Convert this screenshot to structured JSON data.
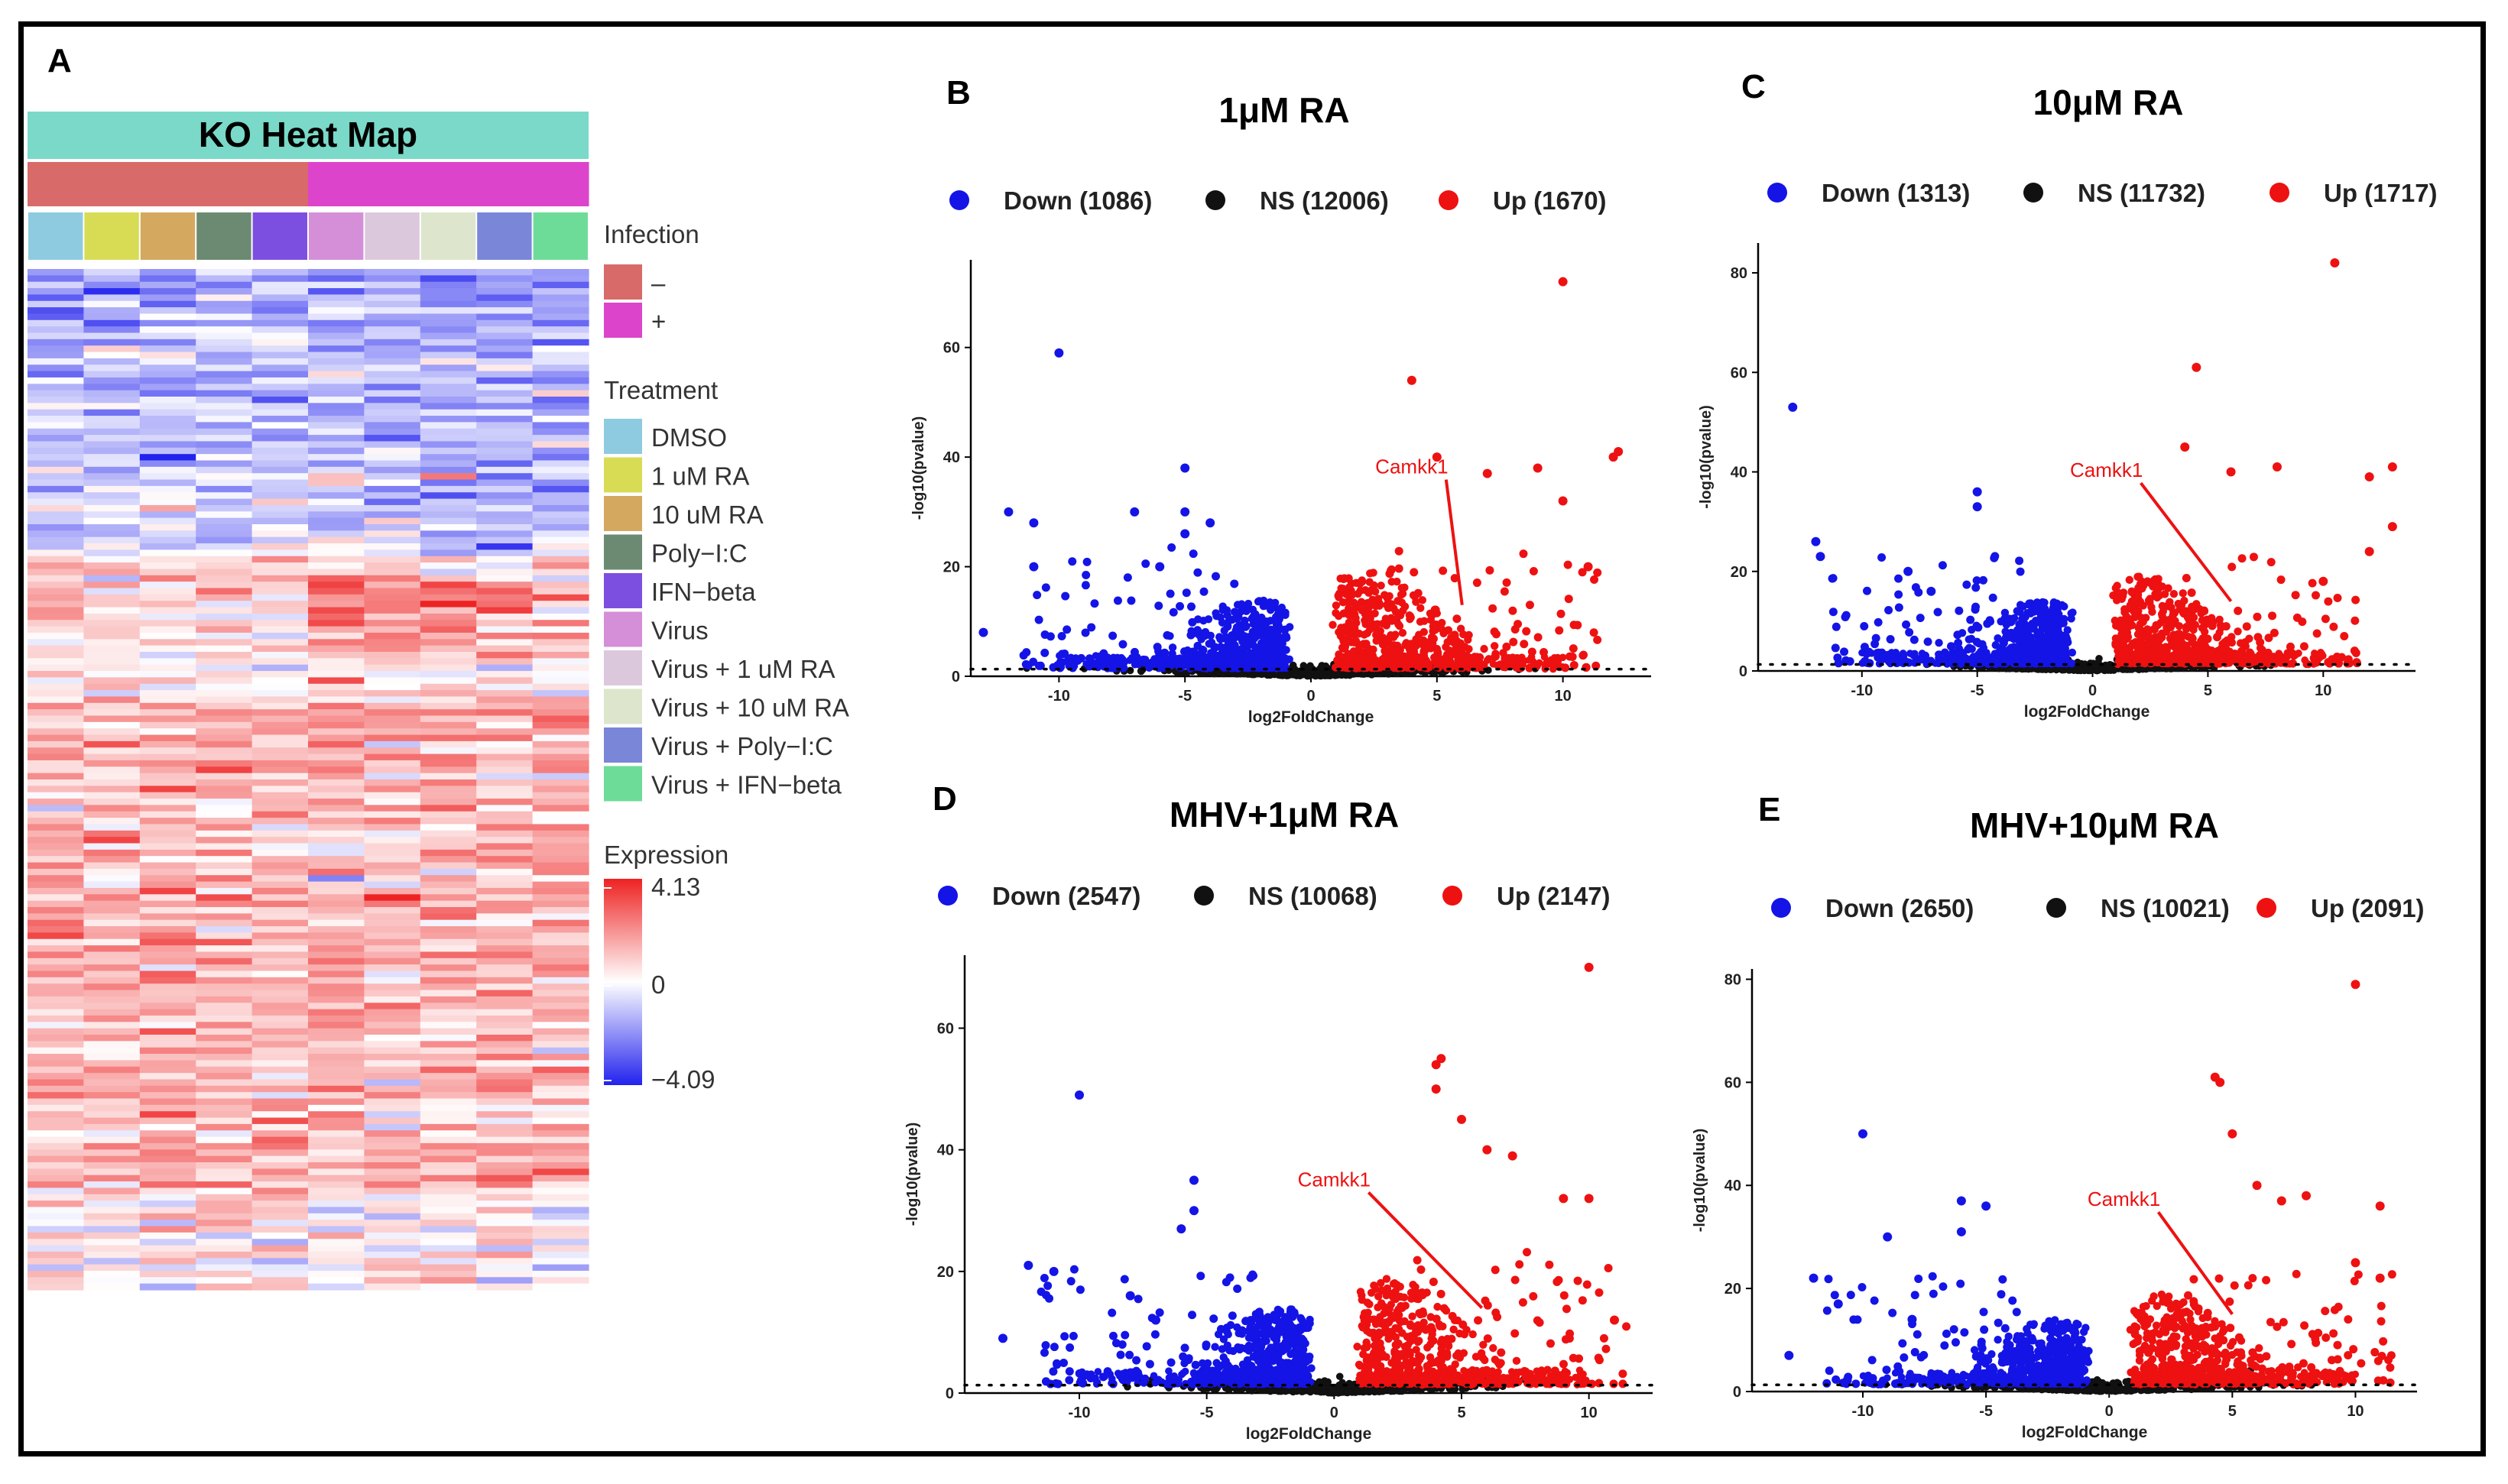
{
  "colors": {
    "down": "#1414e6",
    "ns": "#111111",
    "up": "#ee1111",
    "infection_neg": "#d96a6a",
    "infection_pos": "#dd44cc",
    "header_bg": "#7ad9c8",
    "heat_low": "#2222ee",
    "heat_mid": "#ffffff",
    "heat_high": "#ee2222"
  },
  "chart_data": [
    {
      "panel": "A",
      "type": "heatmap",
      "title": "KO Heat Map",
      "legend": {
        "infection_title": "Infection",
        "infection": [
          {
            "label": "–",
            "color": "#d96a6a"
          },
          {
            "label": "+",
            "color": "#dd44cc"
          }
        ],
        "treatment_title": "Treatment",
        "treatment": [
          {
            "label": "DMSO",
            "color": "#8ecbe0"
          },
          {
            "label": "1 uM RA",
            "color": "#d8dc55"
          },
          {
            "label": "10 uM RA",
            "color": "#d5a860"
          },
          {
            "label": "Poly−I:C",
            "color": "#6c8a72"
          },
          {
            "label": "IFN−beta",
            "color": "#7d4fe0"
          },
          {
            "label": "Virus",
            "color": "#d48fd8"
          },
          {
            "label": "Virus + 1 uM RA",
            "color": "#dcc8dc"
          },
          {
            "label": "Virus + 10 uM RA",
            "color": "#dde6cc"
          },
          {
            "label": "Virus + Poly−I:C",
            "color": "#7a86d8"
          },
          {
            "label": "Virus + IFN−beta",
            "color": "#6ddc98"
          }
        ],
        "expression_title": "Expression",
        "expression_ticks": [
          "4.13",
          "0",
          "−4.09"
        ],
        "expression_range": [
          -4.09,
          4.13
        ]
      },
      "columns": 10,
      "infection_by_column": [
        "–",
        "–",
        "–",
        "–",
        "–",
        "+",
        "+",
        "+",
        "+",
        "+"
      ]
    },
    {
      "panel": "B",
      "type": "scatter",
      "title": "1μM RA",
      "legend": [
        {
          "label": "Down (1086)",
          "series": "down"
        },
        {
          "label": "NS (12006)",
          "series": "ns"
        },
        {
          "label": "Up (1670)",
          "series": "up"
        }
      ],
      "xlabel": "log2FoldChange",
      "ylabel": "-log10(pvalue)",
      "xlim": [
        -13.5,
        13.5
      ],
      "ylim": [
        0,
        76
      ],
      "xticks": [
        -10,
        -5,
        0,
        5,
        10
      ],
      "yticks": [
        0,
        20,
        40,
        60
      ],
      "annotation": {
        "label": "Camkk1",
        "x": 4.0,
        "y": 37,
        "target": [
          6.0,
          13
        ]
      },
      "outliers": [
        [
          10,
          72
        ],
        [
          4,
          54
        ],
        [
          -10,
          59
        ],
        [
          -13,
          8
        ],
        [
          -12,
          30
        ],
        [
          -11,
          28
        ],
        [
          -11,
          20
        ],
        [
          -5,
          38
        ],
        [
          -7,
          30
        ],
        [
          -5,
          30
        ],
        [
          -4,
          28
        ],
        [
          5,
          40
        ],
        [
          12,
          40
        ],
        [
          12.2,
          41
        ],
        [
          9,
          38
        ],
        [
          7,
          37
        ],
        [
          10,
          32
        ],
        [
          11,
          20
        ],
        [
          -5,
          26
        ],
        [
          -6,
          20
        ]
      ],
      "threshold_y": 1.3
    },
    {
      "panel": "C",
      "type": "scatter",
      "title": "10μM RA",
      "legend": [
        {
          "label": "Down (1313)",
          "series": "down"
        },
        {
          "label": "NS (11732)",
          "series": "ns"
        },
        {
          "label": "Up (1717)",
          "series": "up"
        }
      ],
      "xlabel": "log2FoldChange",
      "ylabel": "-log10(pvalue)",
      "xlim": [
        -14.5,
        14
      ],
      "ylim": [
        0,
        86
      ],
      "xticks": [
        -10,
        -5,
        0,
        5,
        10
      ],
      "yticks": [
        0,
        20,
        40,
        60,
        80
      ],
      "annotation": {
        "label": "Camkk1",
        "x": 0.6,
        "y": 39,
        "target": [
          6.0,
          14
        ]
      },
      "outliers": [
        [
          10.5,
          82
        ],
        [
          4.5,
          61
        ],
        [
          -13,
          53
        ],
        [
          -12,
          26
        ],
        [
          -11.8,
          23
        ],
        [
          -5,
          36
        ],
        [
          -5,
          33
        ],
        [
          4,
          45
        ],
        [
          6,
          40
        ],
        [
          8,
          41
        ],
        [
          12,
          39
        ],
        [
          13,
          41
        ],
        [
          13,
          29
        ],
        [
          12,
          24
        ],
        [
          10,
          18
        ],
        [
          -8,
          20
        ],
        [
          -7,
          16
        ]
      ],
      "threshold_y": 1.3
    },
    {
      "panel": "D",
      "type": "scatter",
      "title": "MHV+1μM RA",
      "legend": [
        {
          "label": "Down (2547)",
          "series": "down"
        },
        {
          "label": "NS (10068)",
          "series": "ns"
        },
        {
          "label": "Up (2147)",
          "series": "up"
        }
      ],
      "xlabel": "log2FoldChange",
      "ylabel": "-log10(pvalue)",
      "xlim": [
        -14.5,
        12.5
      ],
      "ylim": [
        0,
        72
      ],
      "xticks": [
        -10,
        -5,
        0,
        5,
        10
      ],
      "yticks": [
        0,
        20,
        40,
        60
      ],
      "annotation": {
        "label": "Camkk1",
        "x": 0.0,
        "y": 34,
        "target": [
          5.8,
          14
        ]
      },
      "outliers": [
        [
          10,
          70
        ],
        [
          4,
          54
        ],
        [
          4.2,
          55
        ],
        [
          -10,
          49
        ],
        [
          -13,
          9
        ],
        [
          -12,
          21
        ],
        [
          -11,
          20
        ],
        [
          -5.5,
          35
        ],
        [
          -5.5,
          30
        ],
        [
          -6,
          27
        ],
        [
          4,
          50
        ],
        [
          5,
          45
        ],
        [
          6,
          40
        ],
        [
          7,
          39
        ],
        [
          9,
          32
        ],
        [
          10,
          32
        ],
        [
          11,
          12
        ],
        [
          -8,
          16
        ],
        [
          -7,
          12
        ]
      ],
      "threshold_y": 1.3
    },
    {
      "panel": "E",
      "type": "scatter",
      "title": "MHV+10μM RA",
      "legend": [
        {
          "label": "Down (2650)",
          "series": "down"
        },
        {
          "label": "NS (10021)",
          "series": "ns"
        },
        {
          "label": "Up (2091)",
          "series": "up"
        }
      ],
      "xlabel": "log2FoldChange",
      "ylabel": "-log10(pvalue)",
      "xlim": [
        -14.5,
        12.5
      ],
      "ylim": [
        0,
        82
      ],
      "xticks": [
        -10,
        -5,
        0,
        5,
        10
      ],
      "yticks": [
        0,
        20,
        40,
        60,
        80
      ],
      "annotation": {
        "label": "Camkk1",
        "x": 0.6,
        "y": 36,
        "target": [
          5.0,
          15
        ]
      },
      "outliers": [
        [
          10,
          79
        ],
        [
          4.5,
          60
        ],
        [
          4.3,
          61
        ],
        [
          -10,
          50
        ],
        [
          -9,
          30
        ],
        [
          -13,
          7
        ],
        [
          -12,
          22
        ],
        [
          -11,
          17
        ],
        [
          -6,
          37
        ],
        [
          -5,
          36
        ],
        [
          -6,
          31
        ],
        [
          5,
          50
        ],
        [
          6,
          40
        ],
        [
          7,
          37
        ],
        [
          8,
          38
        ],
        [
          10,
          25
        ],
        [
          11,
          36
        ],
        [
          11,
          22
        ],
        [
          -8,
          14
        ]
      ],
      "threshold_y": 1.3
    }
  ]
}
